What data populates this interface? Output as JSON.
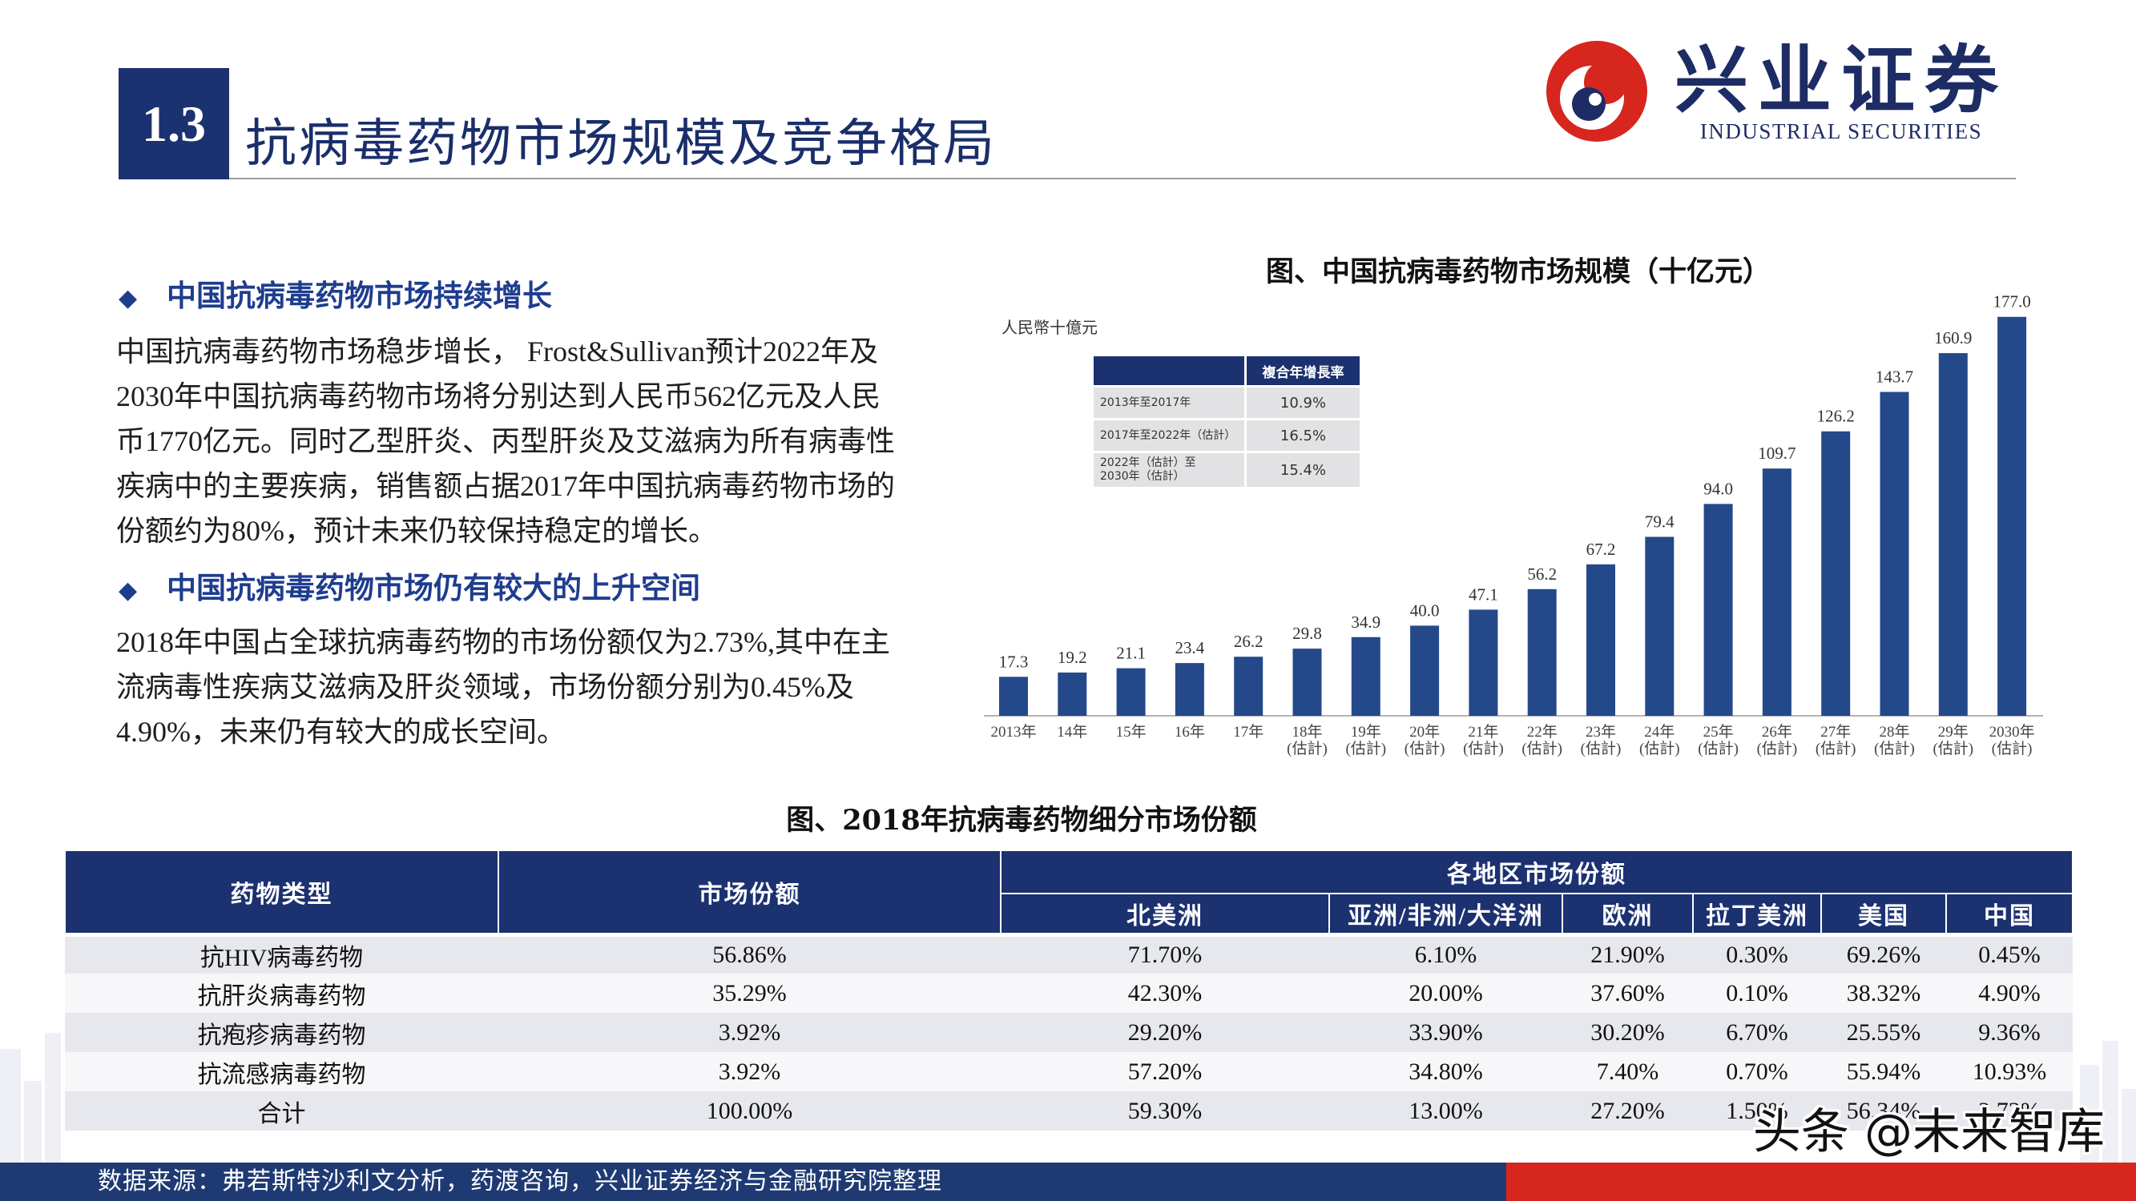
{
  "colors": {
    "navy": "#1c3170",
    "heading_blue": "#1f3d8f",
    "title_navy": "#1a2e6a",
    "bar": "#24498a",
    "red": "#d6261e",
    "footer_navy": "#1f3a73"
  },
  "header": {
    "section_number": "1.3",
    "title": "抗病毒药物市场规模及竞争格局"
  },
  "logo": {
    "icon": "industrial-securities-logo-icon",
    "name_cn": "兴业证券",
    "name_en": "INDUSTRIAL SECURITIES"
  },
  "left_panel": {
    "bullet_icon": "◆",
    "section1": {
      "heading": "中国抗病毒药物市场持续增长",
      "lines": [
        "中国抗病毒药物市场稳步增长， Frost&Sullivan预计2022年及",
        "2030年中国抗病毒药物市场将分别达到人民币562亿元及人民",
        "币1770亿元。同时乙型肝炎、丙型肝炎及艾滋病为所有病毒性",
        "疾病中的主要疾病，销售额占据2017年中国抗病毒药物市场的",
        "份额约为80%，预计未来仍较保持稳定的增长。"
      ]
    },
    "section2": {
      "heading": "中国抗病毒药物市场仍有较大的上升空间",
      "lines": [
        "2018年中国占全球抗病毒药物的市场份额仅为2.73%,其中在主",
        "流病毒性疾病艾滋病及肝炎领域，市场份额分别为0.45%及",
        "4.90%，未来仍有较大的成长空间。"
      ]
    }
  },
  "chart_data": {
    "type": "bar",
    "title": "图、中国抗病毒药物市场规模（十亿元）",
    "ylabel": "人民幣十億元",
    "categories": [
      "2013年",
      "14年",
      "15年",
      "16年",
      "17年",
      "18年(估計)",
      "19年(估計)",
      "20年(估計)",
      "21年(估計)",
      "22年(估計)",
      "23年(估計)",
      "24年(估計)",
      "25年(估計)",
      "26年(估計)",
      "27年(估計)",
      "28年(估計)",
      "29年(估計)",
      "2030年(估計)"
    ],
    "values": [
      17.3,
      19.2,
      21.1,
      23.4,
      26.2,
      29.8,
      34.9,
      40.0,
      47.1,
      56.2,
      67.2,
      79.4,
      94.0,
      109.7,
      126.2,
      143.7,
      160.9,
      177.0
    ],
    "data_labels": true,
    "grid": false,
    "bar_color": "#24498a",
    "cagr_table": {
      "header": "複合年增長率",
      "rows": [
        {
          "period": [
            "2013年至2017年"
          ],
          "rate": "10.9%"
        },
        {
          "period": [
            "2017年至2022年（估計）"
          ],
          "rate": "16.5%"
        },
        {
          "period": [
            "2022年（估計）至",
            "2030年（估計）"
          ],
          "rate": "15.4%"
        }
      ]
    }
  },
  "share_table": {
    "title": "图、2018年抗病毒药物细分市场份额",
    "headers": {
      "drug_type": "药物类型",
      "market_share": "市场份额",
      "regional": "各地区市场份额",
      "regions": [
        "北美洲",
        "亚洲/非洲/大洋洲",
        "欧洲",
        "拉丁美洲",
        "美国",
        "中国"
      ]
    },
    "rows": [
      {
        "drug": "抗HIV病毒药物",
        "share": "56.86%",
        "regions": [
          "71.70%",
          "6.10%",
          "21.90%",
          "0.30%",
          "69.26%",
          "0.45%"
        ]
      },
      {
        "drug": "抗肝炎病毒药物",
        "share": "35.29%",
        "regions": [
          "42.30%",
          "20.00%",
          "37.60%",
          "0.10%",
          "38.32%",
          "4.90%"
        ]
      },
      {
        "drug": "抗疱疹病毒药物",
        "share": "3.92%",
        "regions": [
          "29.20%",
          "33.90%",
          "30.20%",
          "6.70%",
          "25.55%",
          "9.36%"
        ]
      },
      {
        "drug": "抗流感病毒药物",
        "share": "3.92%",
        "regions": [
          "57.20%",
          "34.80%",
          "7.40%",
          "0.70%",
          "55.94%",
          "10.93%"
        ]
      },
      {
        "drug": "合计",
        "share": "100.00%",
        "regions": [
          "59.30%",
          "13.00%",
          "27.20%",
          "1.50%",
          "56.34%",
          "2.73%"
        ]
      }
    ]
  },
  "footer": {
    "source": "数据来源：弗若斯特沙利文分析，药渡咨询，兴业证券经济与金融研究院整理"
  },
  "watermark": "头条 @未来智库"
}
